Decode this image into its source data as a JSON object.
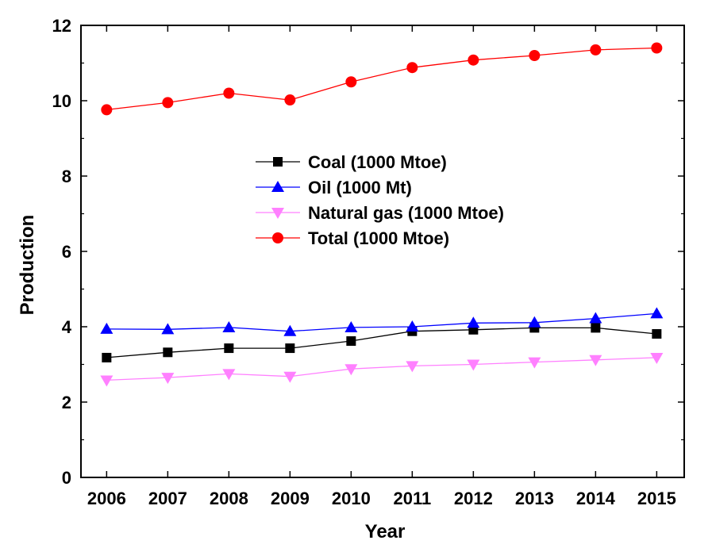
{
  "chart_data": {
    "type": "line",
    "xlabel": "Year",
    "ylabel": "Production",
    "x": [
      2006,
      2007,
      2008,
      2009,
      2010,
      2011,
      2012,
      2013,
      2014,
      2015
    ],
    "xlim": [
      2005.58,
      2015.45
    ],
    "ylim": [
      0,
      12
    ],
    "yticks": [
      0,
      2,
      4,
      6,
      8,
      10,
      12
    ],
    "grid": false,
    "legend_position": "center",
    "series": [
      {
        "name": "Coal (1000 Mtoe)",
        "color": "#000000",
        "marker": "square",
        "values": [
          3.18,
          3.32,
          3.43,
          3.43,
          3.62,
          3.88,
          3.92,
          3.97,
          3.97,
          3.81
        ]
      },
      {
        "name": "Oil (1000 Mt)",
        "color": "#0000ff",
        "marker": "triangle-up",
        "values": [
          3.94,
          3.93,
          3.98,
          3.88,
          3.98,
          4.0,
          4.1,
          4.11,
          4.22,
          4.35
        ]
      },
      {
        "name": "Natural gas (1000 Mtoe)",
        "color": "#ff80ff",
        "marker": "triangle-down",
        "values": [
          2.58,
          2.65,
          2.75,
          2.68,
          2.88,
          2.96,
          3.0,
          3.06,
          3.12,
          3.18
        ]
      },
      {
        "name": "Total (1000 Mtoe)",
        "color": "#ff0000",
        "marker": "circle",
        "values": [
          9.76,
          9.95,
          10.2,
          10.02,
          10.5,
          10.88,
          11.08,
          11.2,
          11.35,
          11.4
        ]
      }
    ]
  }
}
